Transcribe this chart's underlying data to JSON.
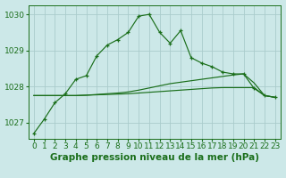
{
  "title": "Graphe pression niveau de la mer (hPa)",
  "bg_color": "#cce8e8",
  "grid_color": "#aacccc",
  "line_color": "#1a6e1a",
  "marker_color": "#1a6e1a",
  "ylim": [
    1026.55,
    1030.25
  ],
  "xlim": [
    -0.5,
    23.5
  ],
  "yticks": [
    1027,
    1028,
    1029,
    1030
  ],
  "xticks": [
    0,
    1,
    2,
    3,
    4,
    5,
    6,
    7,
    8,
    9,
    10,
    11,
    12,
    13,
    14,
    15,
    16,
    17,
    18,
    19,
    20,
    21,
    22,
    23
  ],
  "series1": [
    1026.7,
    1027.1,
    1027.55,
    1027.8,
    1028.2,
    1028.3,
    1028.85,
    1029.15,
    1029.3,
    1029.5,
    1029.95,
    1030.0,
    1029.5,
    1029.2,
    1029.55,
    1028.8,
    1028.65,
    1028.55,
    1028.4,
    1028.35,
    1028.35,
    1027.95,
    1027.75,
    1027.7
  ],
  "series2": [
    1027.75,
    1027.75,
    1027.75,
    1027.75,
    1027.75,
    1027.76,
    1027.77,
    1027.78,
    1027.79,
    1027.8,
    1027.82,
    1027.84,
    1027.86,
    1027.88,
    1027.9,
    1027.92,
    1027.94,
    1027.96,
    1027.97,
    1027.97,
    1027.97,
    1027.97,
    1027.75,
    1027.7
  ],
  "series3": [
    1027.75,
    1027.75,
    1027.75,
    1027.75,
    1027.75,
    1027.76,
    1027.78,
    1027.8,
    1027.82,
    1027.85,
    1027.9,
    1027.96,
    1028.02,
    1028.08,
    1028.12,
    1028.16,
    1028.2,
    1028.24,
    1028.28,
    1028.32,
    1028.35,
    1028.1,
    1027.75,
    1027.7
  ],
  "tick_fontsize": 6.5,
  "title_fontsize": 7.5,
  "fig_width": 3.2,
  "fig_height": 2.0,
  "dpi": 100
}
